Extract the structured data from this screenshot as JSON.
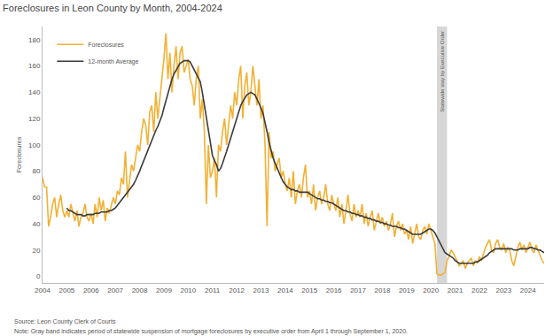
{
  "chart_data": {
    "type": "line",
    "title": "Foreclosures in Leon County by Month, 2004-2024",
    "y_label": "Foreclosures",
    "categories": [
      "2004",
      null,
      null,
      null,
      null,
      null,
      null,
      null,
      null,
      null,
      null,
      null,
      "2005",
      null,
      null,
      null,
      null,
      null,
      null,
      null,
      null,
      null,
      null,
      null,
      "2006",
      null,
      null,
      null,
      null,
      null,
      null,
      null,
      null,
      null,
      null,
      null,
      "2007",
      null,
      null,
      null,
      null,
      null,
      null,
      null,
      null,
      null,
      null,
      null,
      "2008",
      null,
      null,
      null,
      null,
      null,
      null,
      null,
      null,
      null,
      null,
      null,
      "2009",
      null,
      null,
      null,
      null,
      null,
      null,
      null,
      null,
      null,
      null,
      null,
      "2010",
      null,
      null,
      null,
      null,
      null,
      null,
      null,
      null,
      null,
      null,
      null,
      "2011",
      null,
      null,
      null,
      null,
      null,
      null,
      null,
      null,
      null,
      null,
      null,
      "2012",
      null,
      null,
      null,
      null,
      null,
      null,
      null,
      null,
      null,
      null,
      null,
      "2013",
      null,
      null,
      null,
      null,
      null,
      null,
      null,
      null,
      null,
      null,
      null,
      "2014",
      null,
      null,
      null,
      null,
      null,
      null,
      null,
      null,
      null,
      null,
      null,
      "2015",
      null,
      null,
      null,
      null,
      null,
      null,
      null,
      null,
      null,
      null,
      null,
      "2016",
      null,
      null,
      null,
      null,
      null,
      null,
      null,
      null,
      null,
      null,
      null,
      "2017",
      null,
      null,
      null,
      null,
      null,
      null,
      null,
      null,
      null,
      null,
      null,
      "2018",
      null,
      null,
      null,
      null,
      null,
      null,
      null,
      null,
      null,
      null,
      null,
      "2019",
      null,
      null,
      null,
      null,
      null,
      null,
      null,
      null,
      null,
      null,
      null,
      "2020",
      null,
      null,
      null,
      null,
      null,
      null,
      null,
      null,
      null,
      null,
      null,
      "2021",
      null,
      null,
      null,
      null,
      null,
      null,
      null,
      null,
      null,
      null,
      null,
      "2022",
      null,
      null,
      null,
      null,
      null,
      null,
      null,
      null,
      null,
      null,
      null,
      "2023",
      null,
      null,
      null,
      null,
      null,
      null,
      null,
      null,
      null,
      null,
      null,
      "2024",
      null,
      null,
      null,
      null,
      null,
      null,
      null,
      null
    ],
    "series": [
      {
        "name": "Foreclosures",
        "color": "#f2b134",
        "line_style": "solid",
        "values": [
          75,
          68,
          68,
          38,
          45,
          55,
          60,
          45,
          55,
          62,
          50,
          45,
          50,
          45,
          55,
          48,
          42,
          50,
          38,
          45,
          48,
          55,
          45,
          42,
          48,
          40,
          55,
          45,
          60,
          50,
          58,
          42,
          52,
          48,
          55,
          60,
          55,
          65,
          62,
          75,
          70,
          95,
          60,
          72,
          85,
          80,
          90,
          100,
          95,
          110,
          120,
          115,
          100,
          125,
          130,
          110,
          140,
          120,
          135,
          150,
          165,
          185,
          150,
          170,
          140,
          160,
          175,
          150,
          170,
          175,
          155,
          160,
          165,
          150,
          145,
          130,
          150,
          160,
          120,
          135,
          110,
          55,
          100,
          75,
          80,
          90,
          60,
          100,
          95,
          110,
          120,
          100,
          115,
          130,
          120,
          140,
          130,
          150,
          160,
          120,
          145,
          155,
          130,
          140,
          160,
          145,
          130,
          150,
          120,
          130,
          100,
          38,
          110,
          90,
          95,
          80,
          85,
          90,
          75,
          80,
          70,
          65,
          75,
          60,
          80,
          55,
          65,
          70,
          60,
          75,
          85,
          60,
          65,
          55,
          70,
          50,
          60,
          65,
          55,
          60,
          70,
          55,
          50,
          62,
          55,
          50,
          60,
          45,
          55,
          40,
          50,
          62,
          48,
          42,
          55,
          45,
          50,
          45,
          55,
          40,
          48,
          38,
          45,
          50,
          35,
          42,
          48,
          40,
          45,
          38,
          42,
          35,
          40,
          48,
          30,
          38,
          42,
          35,
          40,
          32,
          35,
          28,
          38,
          25,
          32,
          40,
          30,
          28,
          35,
          38,
          32,
          40,
          35,
          30,
          25,
          2,
          1,
          1,
          2,
          3,
          12,
          15,
          20,
          18,
          15,
          12,
          8,
          10,
          12,
          6,
          10,
          12,
          14,
          8,
          12,
          10,
          15,
          12,
          18,
          22,
          25,
          28,
          20,
          18,
          25,
          28,
          22,
          20,
          25,
          18,
          22,
          20,
          12,
          8,
          15,
          22,
          26,
          20,
          24,
          18,
          22,
          26,
          20,
          18,
          24,
          20,
          15,
          12,
          10
        ]
      },
      {
        "name": "12-month Average",
        "color": "#3a3a3a",
        "line_style": "solid",
        "values": [
          null,
          null,
          null,
          null,
          null,
          null,
          null,
          null,
          null,
          null,
          null,
          null,
          52,
          50,
          50,
          49,
          48,
          47,
          47,
          47,
          46,
          46,
          47,
          47,
          47,
          47,
          48,
          48,
          48,
          49,
          49,
          49,
          49,
          50,
          50,
          51,
          52,
          54,
          56,
          58,
          60,
          62,
          64,
          66,
          68,
          70,
          73,
          76,
          80,
          84,
          88,
          92,
          96,
          100,
          104,
          108,
          111,
          114,
          118,
          122,
          128,
          134,
          140,
          145,
          150,
          154,
          157,
          160,
          162,
          163,
          164,
          164,
          164,
          163,
          160,
          158,
          155,
          152,
          148,
          140,
          130,
          120,
          110,
          100,
          92,
          88,
          85,
          80,
          82,
          86,
          90,
          95,
          100,
          105,
          110,
          115,
          120,
          125,
          130,
          133,
          136,
          138,
          139,
          140,
          139,
          138,
          135,
          132,
          128,
          124,
          118,
          110,
          102,
          95,
          90,
          86,
          82,
          78,
          75,
          72,
          70,
          68,
          67,
          66,
          66,
          65,
          65,
          64,
          64,
          64,
          64,
          64,
          63,
          62,
          61,
          60,
          59,
          59,
          58,
          58,
          57,
          57,
          56,
          56,
          55,
          54,
          53,
          52,
          51,
          50,
          50,
          49,
          49,
          48,
          48,
          47,
          47,
          46,
          46,
          45,
          45,
          44,
          44,
          43,
          43,
          42,
          42,
          41,
          41,
          40,
          40,
          39,
          39,
          38,
          38,
          38,
          37,
          37,
          36,
          36,
          35,
          34,
          33,
          32,
          32,
          32,
          32,
          32,
          33,
          34,
          35,
          36,
          36,
          35,
          33,
          30,
          27,
          24,
          21,
          18,
          17,
          16,
          15,
          14,
          12,
          11,
          10,
          10,
          10,
          10,
          10,
          10,
          10,
          10,
          11,
          11,
          12,
          13,
          14,
          15,
          16,
          18,
          19,
          20,
          21,
          21,
          21,
          21,
          21,
          21,
          21,
          21,
          21,
          20,
          20,
          20,
          21,
          21,
          21,
          21,
          21,
          22,
          22,
          21,
          21,
          20,
          20,
          19,
          18
        ]
      }
    ],
    "ylim": [
      -5,
      190
    ],
    "yticks": [
      0,
      20,
      40,
      60,
      80,
      100,
      120,
      140,
      160,
      180
    ],
    "grid": false,
    "legend": "upper left",
    "annotations": [
      {
        "text": "Statewide stay by Executive Order",
        "x0": 195,
        "x1": 200,
        "color": "#cccccc"
      }
    ],
    "source": "Source: Leon County Clerk of Courts",
    "note": "Note: Gray band indicates period of statewide suspension of mortgage foreclosures by executive order from April 1 through September 1, 2020."
  }
}
